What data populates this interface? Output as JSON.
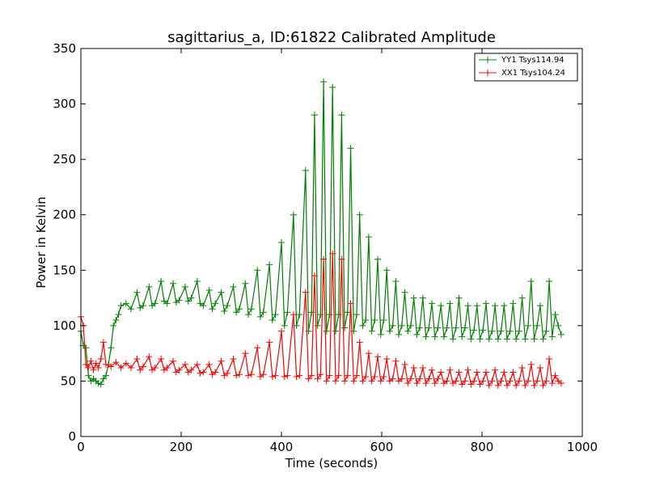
{
  "chart_data": {
    "type": "line",
    "title": "sagittarius_a, ID:61822 Calibrated Amplitude",
    "xlabel": "Time (seconds)",
    "ylabel": "Power in Kelvin",
    "xlim": [
      0,
      1000
    ],
    "ylim": [
      0,
      350
    ],
    "xticks": [
      "0",
      "200",
      "400",
      "600",
      "800",
      "1000"
    ],
    "yticks": [
      "0",
      "50",
      "100",
      "150",
      "200",
      "250",
      "300",
      "350"
    ],
    "grid": false,
    "legend_position": "top-right",
    "marker": "+",
    "series": [
      {
        "name": "YY1 Tsys114.94",
        "color": "#008000",
        "x": [
          0,
          5,
          10,
          15,
          20,
          25,
          30,
          35,
          40,
          45,
          50,
          55,
          60,
          65,
          70,
          75,
          80,
          90,
          100,
          112,
          118,
          124,
          136,
          142,
          148,
          160,
          166,
          172,
          184,
          190,
          196,
          208,
          214,
          220,
          232,
          238,
          244,
          256,
          262,
          268,
          280,
          286,
          292,
          304,
          310,
          316,
          328,
          334,
          340,
          352,
          358,
          364,
          376,
          382,
          388,
          400,
          406,
          412,
          424,
          430,
          436,
          448,
          454,
          460,
          466,
          472,
          478,
          484,
          490,
          496,
          502,
          508,
          514,
          520,
          526,
          532,
          538,
          544,
          550,
          556,
          562,
          568,
          574,
          580,
          586,
          592,
          598,
          604,
          610,
          616,
          622,
          628,
          634,
          640,
          646,
          652,
          658,
          664,
          670,
          676,
          682,
          688,
          694,
          700,
          706,
          712,
          718,
          724,
          730,
          736,
          742,
          748,
          754,
          760,
          766,
          772,
          778,
          784,
          790,
          796,
          802,
          808,
          814,
          820,
          826,
          832,
          838,
          844,
          850,
          856,
          862,
          868,
          874,
          880,
          886,
          892,
          898,
          904,
          910,
          916,
          922,
          928,
          934,
          940,
          946,
          952,
          958
        ],
        "y": [
          95,
          82,
          80,
          55,
          50,
          52,
          50,
          48,
          47,
          52,
          55,
          65,
          80,
          100,
          105,
          110,
          118,
          120,
          115,
          130,
          116,
          118,
          135,
          118,
          120,
          140,
          122,
          120,
          138,
          121,
          123,
          135,
          122,
          125,
          140,
          120,
          118,
          132,
          115,
          120,
          130,
          113,
          118,
          135,
          112,
          115,
          138,
          110,
          115,
          150,
          108,
          112,
          155,
          105,
          110,
          175,
          100,
          112,
          200,
          100,
          110,
          240,
          95,
          112,
          290,
          100,
          110,
          320,
          95,
          110,
          315,
          95,
          110,
          290,
          98,
          112,
          260,
          95,
          110,
          200,
          100,
          105,
          180,
          95,
          105,
          160,
          92,
          105,
          150,
          95,
          100,
          140,
          92,
          100,
          130,
          95,
          100,
          125,
          92,
          98,
          125,
          90,
          98,
          120,
          90,
          98,
          118,
          90,
          98,
          120,
          88,
          98,
          125,
          90,
          98,
          118,
          88,
          96,
          118,
          88,
          96,
          120,
          88,
          95,
          118,
          88,
          95,
          118,
          88,
          95,
          120,
          88,
          95,
          125,
          88,
          100,
          140,
          88,
          100,
          118,
          88,
          95,
          140,
          90,
          110,
          100,
          92
        ]
      },
      {
        "name": "XX1 Tsys104.24",
        "color": "#ff0000",
        "x": [
          0,
          5,
          10,
          15,
          20,
          25,
          30,
          35,
          40,
          45,
          50,
          60,
          70,
          80,
          90,
          100,
          112,
          118,
          124,
          136,
          142,
          148,
          160,
          166,
          172,
          184,
          190,
          196,
          208,
          214,
          220,
          232,
          238,
          244,
          256,
          262,
          268,
          280,
          286,
          292,
          304,
          310,
          316,
          328,
          334,
          340,
          352,
          358,
          364,
          376,
          382,
          388,
          400,
          406,
          412,
          424,
          430,
          436,
          448,
          454,
          460,
          466,
          472,
          478,
          484,
          490,
          496,
          502,
          508,
          514,
          520,
          526,
          532,
          538,
          544,
          550,
          556,
          562,
          568,
          574,
          580,
          586,
          592,
          598,
          604,
          610,
          616,
          622,
          628,
          634,
          640,
          646,
          652,
          658,
          664,
          670,
          676,
          682,
          688,
          694,
          700,
          706,
          712,
          718,
          724,
          730,
          736,
          742,
          748,
          754,
          760,
          766,
          772,
          778,
          784,
          790,
          796,
          802,
          808,
          814,
          820,
          826,
          832,
          838,
          844,
          850,
          856,
          862,
          868,
          874,
          880,
          886,
          892,
          898,
          904,
          910,
          916,
          922,
          928,
          934,
          940,
          946,
          952,
          958
        ],
        "y": [
          108,
          100,
          65,
          62,
          68,
          60,
          66,
          62,
          70,
          85,
          65,
          63,
          67,
          62,
          66,
          62,
          70,
          60,
          63,
          72,
          60,
          62,
          70,
          60,
          62,
          68,
          58,
          60,
          65,
          58,
          60,
          65,
          57,
          58,
          65,
          56,
          58,
          68,
          55,
          57,
          70,
          55,
          56,
          75,
          55,
          56,
          80,
          54,
          56,
          85,
          54,
          55,
          95,
          54,
          55,
          110,
          54,
          55,
          130,
          52,
          55,
          145,
          52,
          56,
          160,
          50,
          55,
          165,
          50,
          55,
          160,
          50,
          55,
          120,
          50,
          55,
          85,
          50,
          54,
          75,
          50,
          54,
          72,
          50,
          54,
          70,
          50,
          52,
          68,
          50,
          52,
          65,
          48,
          52,
          62,
          48,
          52,
          62,
          48,
          52,
          60,
          48,
          52,
          58,
          48,
          50,
          60,
          48,
          50,
          58,
          47,
          50,
          60,
          47,
          50,
          58,
          47,
          50,
          58,
          46,
          50,
          60,
          46,
          50,
          58,
          46,
          50,
          58,
          46,
          50,
          62,
          46,
          50,
          65,
          46,
          50,
          62,
          46,
          50,
          70,
          48,
          55,
          50,
          48
        ]
      }
    ]
  }
}
